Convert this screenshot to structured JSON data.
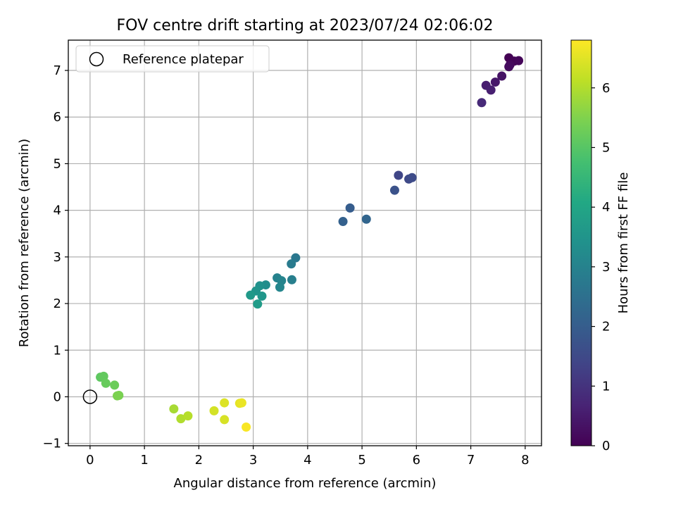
{
  "chart_data": {
    "type": "scatter",
    "title": "FOV centre drift starting at 2023/07/24 02:06:02",
    "xlabel": "Angular distance from reference (arcmin)",
    "ylabel": "Rotation from reference (arcmin)",
    "xlim": [
      -0.4,
      8.3
    ],
    "ylim": [
      -1.05,
      7.65
    ],
    "xticks": [
      0,
      1,
      2,
      3,
      4,
      5,
      6,
      7,
      8
    ],
    "yticks": [
      -1,
      0,
      1,
      2,
      3,
      4,
      5,
      6,
      7
    ],
    "grid": true,
    "legend": {
      "position": "top-left",
      "entries": [
        "Reference platepar"
      ]
    },
    "reference_point": {
      "x": 0,
      "y": 0,
      "name": "Reference platepar"
    },
    "colorbar": {
      "label": "Hours from first FF file",
      "range": [
        0,
        6.8
      ],
      "ticks": [
        0,
        1,
        2,
        3,
        4,
        5,
        6
      ],
      "colormap": "viridis"
    },
    "points": [
      {
        "x": 7.7,
        "y": 7.27,
        "c": 0.0
      },
      {
        "x": 7.8,
        "y": 7.2,
        "c": 0.05
      },
      {
        "x": 7.88,
        "y": 7.21,
        "c": 0.1
      },
      {
        "x": 7.72,
        "y": 7.12,
        "c": 0.15
      },
      {
        "x": 7.7,
        "y": 7.08,
        "c": 0.2
      },
      {
        "x": 7.57,
        "y": 6.88,
        "c": 0.35
      },
      {
        "x": 7.45,
        "y": 6.75,
        "c": 0.45
      },
      {
        "x": 7.28,
        "y": 6.68,
        "c": 0.55
      },
      {
        "x": 7.37,
        "y": 6.58,
        "c": 0.6
      },
      {
        "x": 7.2,
        "y": 6.31,
        "c": 0.8
      },
      {
        "x": 5.67,
        "y": 4.75,
        "c": 1.4
      },
      {
        "x": 5.86,
        "y": 4.67,
        "c": 1.5
      },
      {
        "x": 5.92,
        "y": 4.7,
        "c": 1.55
      },
      {
        "x": 5.6,
        "y": 4.43,
        "c": 1.7
      },
      {
        "x": 4.78,
        "y": 4.05,
        "c": 2.0
      },
      {
        "x": 4.65,
        "y": 3.76,
        "c": 2.1
      },
      {
        "x": 5.08,
        "y": 3.81,
        "c": 2.2
      },
      {
        "x": 3.78,
        "y": 2.98,
        "c": 2.7
      },
      {
        "x": 3.7,
        "y": 2.85,
        "c": 2.8
      },
      {
        "x": 3.71,
        "y": 2.51,
        "c": 2.9
      },
      {
        "x": 3.44,
        "y": 2.55,
        "c": 3.0
      },
      {
        "x": 3.52,
        "y": 2.49,
        "c": 3.05
      },
      {
        "x": 3.49,
        "y": 2.35,
        "c": 3.1
      },
      {
        "x": 3.23,
        "y": 2.4,
        "c": 3.3
      },
      {
        "x": 3.12,
        "y": 2.38,
        "c": 3.4
      },
      {
        "x": 3.05,
        "y": 2.27,
        "c": 3.5
      },
      {
        "x": 3.16,
        "y": 2.16,
        "c": 3.55
      },
      {
        "x": 2.95,
        "y": 2.18,
        "c": 3.65
      },
      {
        "x": 3.08,
        "y": 1.99,
        "c": 3.7
      },
      {
        "x": 0.19,
        "y": 0.42,
        "c": 5.1
      },
      {
        "x": 0.25,
        "y": 0.44,
        "c": 5.15
      },
      {
        "x": 0.29,
        "y": 0.29,
        "c": 5.2
      },
      {
        "x": 0.45,
        "y": 0.25,
        "c": 5.25
      },
      {
        "x": 0.53,
        "y": 0.03,
        "c": 5.4
      },
      {
        "x": 0.5,
        "y": 0.02,
        "c": 5.45
      },
      {
        "x": 1.54,
        "y": -0.26,
        "c": 5.9
      },
      {
        "x": 1.67,
        "y": -0.47,
        "c": 6.0
      },
      {
        "x": 1.8,
        "y": -0.41,
        "c": 6.05
      },
      {
        "x": 2.28,
        "y": -0.3,
        "c": 6.35
      },
      {
        "x": 2.47,
        "y": -0.49,
        "c": 6.4
      },
      {
        "x": 2.47,
        "y": -0.13,
        "c": 6.45
      },
      {
        "x": 2.75,
        "y": -0.14,
        "c": 6.55
      },
      {
        "x": 2.79,
        "y": -0.13,
        "c": 6.6
      },
      {
        "x": 2.87,
        "y": -0.65,
        "c": 6.75
      }
    ]
  }
}
